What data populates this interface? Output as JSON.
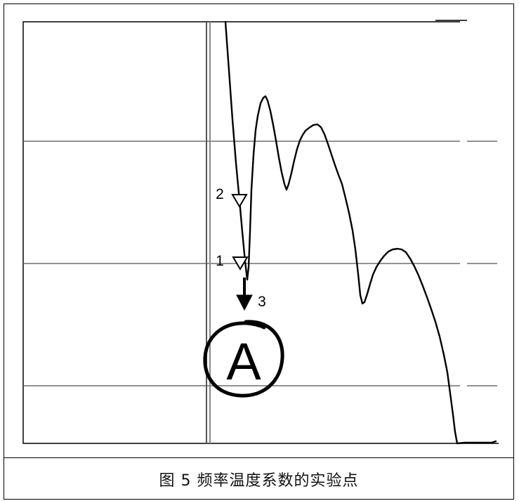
{
  "caption": "图 5 频率温度系数的实验点",
  "markers": [
    {
      "id": "1",
      "label": "1"
    },
    {
      "id": "2",
      "label": "2"
    },
    {
      "id": "3",
      "label": "3"
    }
  ],
  "point_label": "A",
  "colors": {
    "line": "#000000",
    "grid": "#6e6e6e",
    "background": "#ffffff"
  }
}
